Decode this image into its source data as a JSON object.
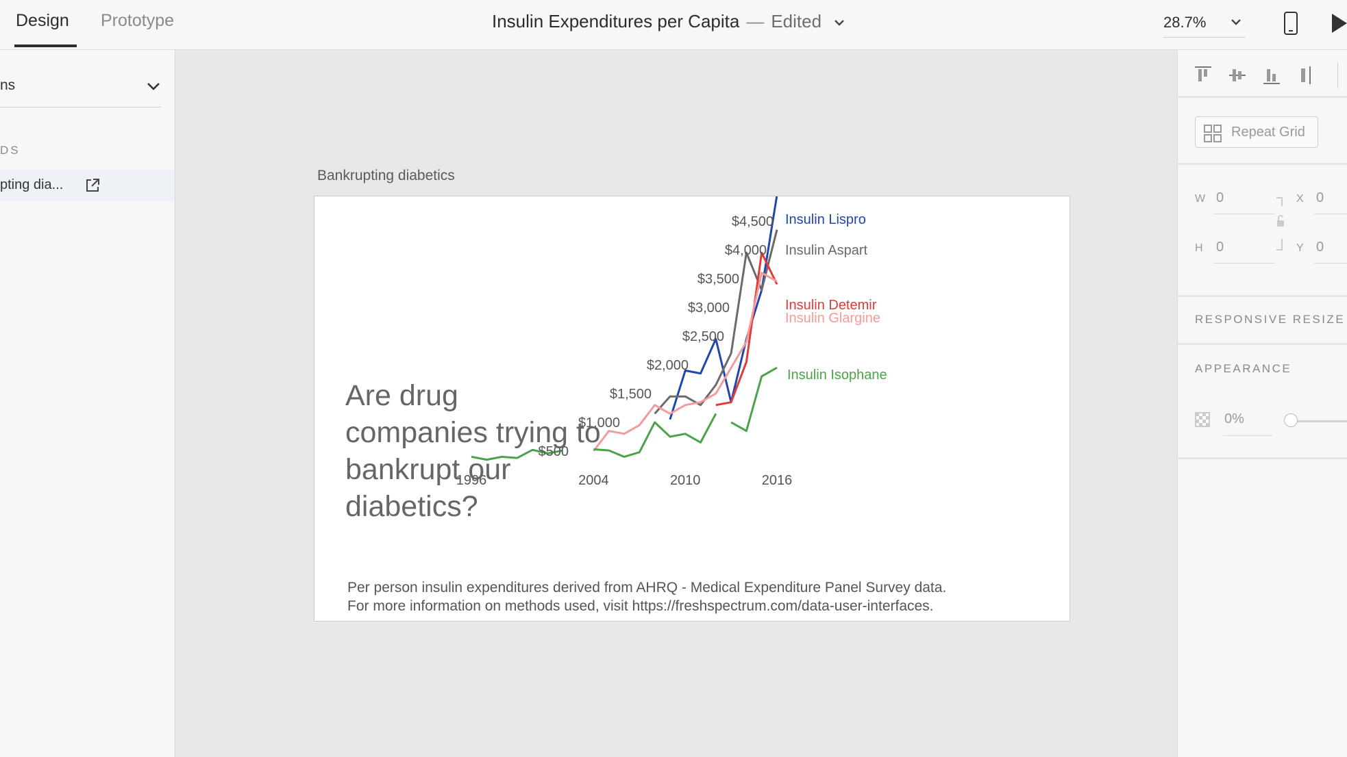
{
  "topbar": {
    "tabs": [
      {
        "label": "Design",
        "active": true
      },
      {
        "label": "Prototype",
        "active": false
      }
    ],
    "document_title": "Insulin Expenditures per Capita",
    "document_status": "Edited",
    "zoom_level": "28.7%"
  },
  "left_panel": {
    "dropdown_value": "ns",
    "section_heading": "DS",
    "item_label": "pting dia..."
  },
  "artboard": {
    "name": "Bankrupting diabetics",
    "headline": "Are drug companies trying to bankrupt our diabetics?",
    "footnote_line1": "Per person insulin expenditures derived from AHRQ - Medical Expenditure Panel Survey data.",
    "footnote_line2": "For more information on methods used, visit https://freshspectrum.com/data-user-interfaces."
  },
  "chart_data": {
    "type": "line",
    "x_ticks": [
      1996,
      2004,
      2010,
      2016
    ],
    "y_ticks": [
      "$500",
      "$1,000",
      "$1,500",
      "$2,000",
      "$2,500",
      "$3,000",
      "$3,500",
      "$4,000",
      "$4,500"
    ],
    "y_tick_values": [
      500,
      1000,
      1500,
      2000,
      2500,
      3000,
      3500,
      4000,
      4500
    ],
    "xlim": [
      1996,
      2016
    ],
    "series": [
      {
        "name": "Insulin Lispro",
        "color": "#1f45b0",
        "x": [
          2009,
          2010,
          2011,
          2012,
          2013,
          2014,
          2015,
          2016
        ],
        "y": [
          1050,
          1900,
          1850,
          2450,
          1350,
          2450,
          3300,
          4950
        ]
      },
      {
        "name": "Insulin Aspart",
        "color": "#6a6a6a",
        "x": [
          2008,
          2009,
          2010,
          2011,
          2012,
          2013,
          2014,
          2015,
          2016
        ],
        "y": [
          1150,
          1450,
          1450,
          1300,
          1650,
          2200,
          3950,
          3300,
          4350
        ]
      },
      {
        "name": "Insulin Detemir",
        "color": "#e03a3a",
        "x": [
          2012,
          2013,
          2014,
          2015,
          2016
        ],
        "y": [
          1300,
          1350,
          2050,
          3950,
          3400
        ]
      },
      {
        "name": "Insulin Glargine",
        "color": "#f29b9b",
        "x": [
          2004,
          2005,
          2006,
          2007,
          2008,
          2009,
          2010,
          2011,
          2012,
          2013,
          2014,
          2015,
          2016
        ],
        "y": [
          500,
          850,
          800,
          950,
          1300,
          1150,
          1300,
          1350,
          1500,
          1950,
          2400,
          3600,
          3450
        ]
      },
      {
        "name": "Insulin Isophane",
        "color": "#4aa34a",
        "segments": [
          {
            "x": [
              1996,
              1997,
              1998,
              1999,
              2000,
              2001,
              2002
            ],
            "y": [
              400,
              350,
              400,
              380,
              520,
              460,
              510
            ]
          },
          {
            "x": [
              2004,
              2005,
              2006,
              2007,
              2008,
              2009,
              2010,
              2011,
              2012
            ],
            "y": [
              530,
              510,
              400,
              480,
              1000,
              750,
              800,
              650,
              1150
            ]
          },
          {
            "x": [
              2013,
              2014,
              2015,
              2016
            ],
            "y": [
              1000,
              850,
              1800,
              1950
            ]
          }
        ]
      }
    ]
  },
  "right_panel": {
    "repeat_grid_label": "Repeat Grid",
    "w_label": "W",
    "w_value": "0",
    "h_label": "H",
    "h_value": "0",
    "x_label": "X",
    "x_value": "0",
    "y_label": "Y",
    "y_value": "0",
    "responsive_resize_label": "RESPONSIVE RESIZE",
    "appearance_label": "APPEARANCE",
    "opacity_value": "0%"
  }
}
